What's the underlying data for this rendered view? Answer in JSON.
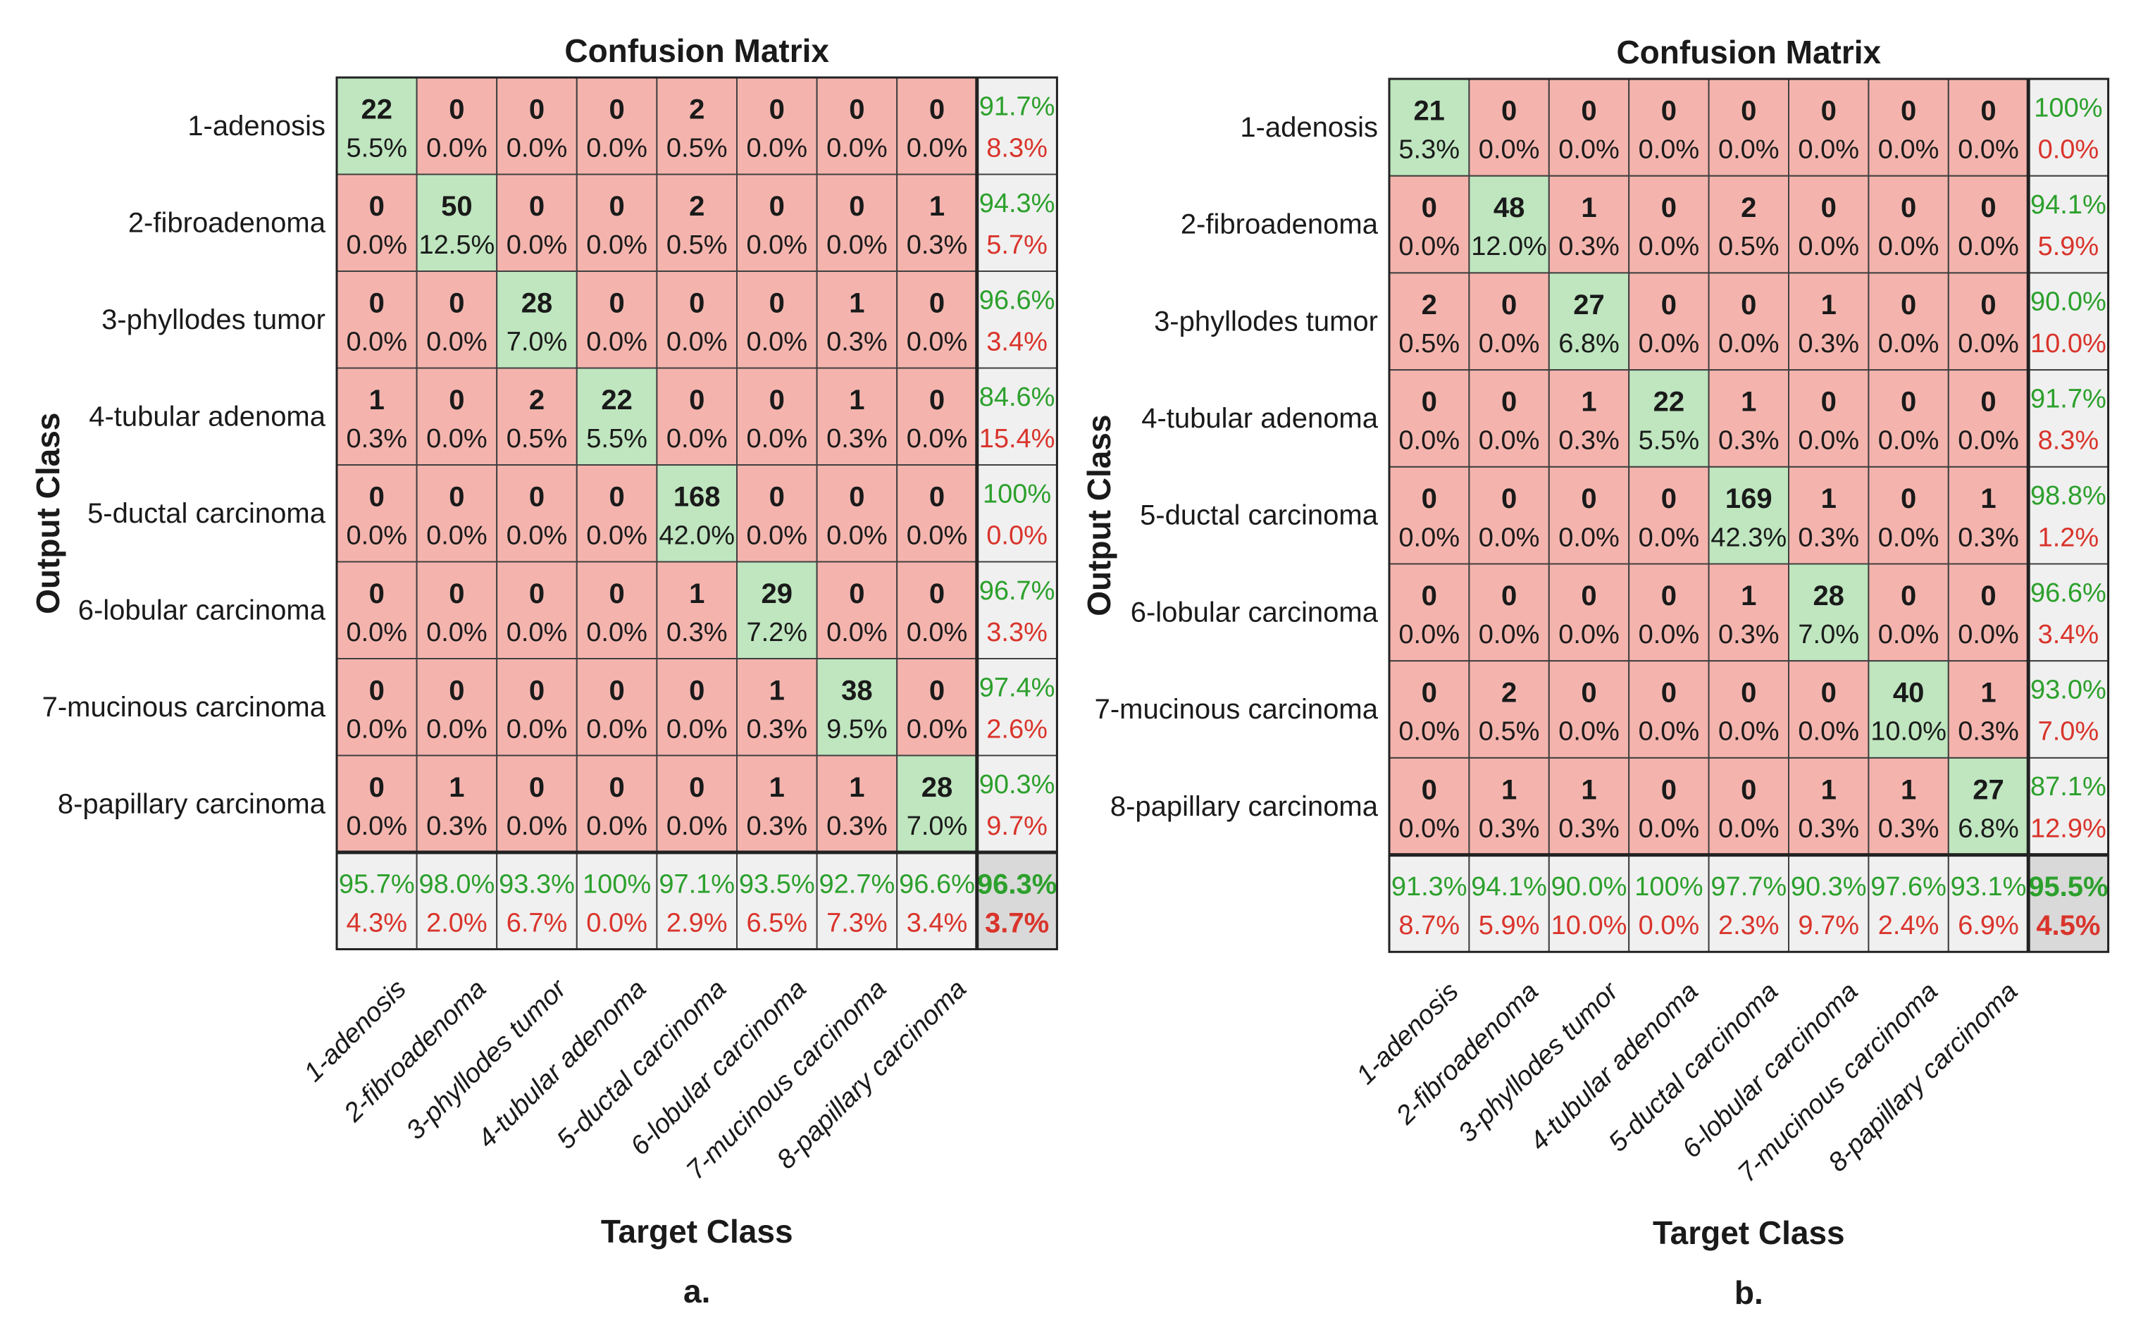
{
  "colors": {
    "diag_fill": "#bfe6bf",
    "offdiag_fill": "#f4b4ad",
    "summary_fill": "#f0f0f0",
    "total_fill": "#d9d9d9",
    "grid": "#404040",
    "green_text": "#2ca02c",
    "red_text": "#d9342b",
    "text": "#1a1a1a"
  },
  "chart_data": [
    {
      "type": "heatmap",
      "panel_label": "a.",
      "title": "Confusion Matrix",
      "xlabel": "Target Class",
      "ylabel": "Output Class",
      "classes": [
        "1-adenosis",
        "2-fibroadenoma",
        "3-phyllodes tumor",
        "4-tubular adenoma",
        "5-ductal carcinoma",
        "6-lobular carcinoma",
        "7-mucinous carcinoma",
        "8-papillary carcinoma"
      ],
      "counts": [
        [
          22,
          0,
          0,
          0,
          2,
          0,
          0,
          0
        ],
        [
          0,
          50,
          0,
          0,
          2,
          0,
          0,
          1
        ],
        [
          0,
          0,
          28,
          0,
          0,
          0,
          1,
          0
        ],
        [
          1,
          0,
          2,
          22,
          0,
          0,
          1,
          0
        ],
        [
          0,
          0,
          0,
          0,
          168,
          0,
          0,
          0
        ],
        [
          0,
          0,
          0,
          0,
          1,
          29,
          0,
          0
        ],
        [
          0,
          0,
          0,
          0,
          0,
          1,
          38,
          0
        ],
        [
          0,
          1,
          0,
          0,
          0,
          1,
          1,
          28
        ]
      ],
      "percents": [
        [
          "5.5%",
          "0.0%",
          "0.0%",
          "0.0%",
          "0.5%",
          "0.0%",
          "0.0%",
          "0.0%"
        ],
        [
          "0.0%",
          "12.5%",
          "0.0%",
          "0.0%",
          "0.5%",
          "0.0%",
          "0.0%",
          "0.3%"
        ],
        [
          "0.0%",
          "0.0%",
          "7.0%",
          "0.0%",
          "0.0%",
          "0.0%",
          "0.3%",
          "0.0%"
        ],
        [
          "0.3%",
          "0.0%",
          "0.5%",
          "5.5%",
          "0.0%",
          "0.0%",
          "0.3%",
          "0.0%"
        ],
        [
          "0.0%",
          "0.0%",
          "0.0%",
          "0.0%",
          "42.0%",
          "0.0%",
          "0.0%",
          "0.0%"
        ],
        [
          "0.0%",
          "0.0%",
          "0.0%",
          "0.0%",
          "0.3%",
          "7.2%",
          "0.0%",
          "0.0%"
        ],
        [
          "0.0%",
          "0.0%",
          "0.0%",
          "0.0%",
          "0.0%",
          "0.3%",
          "9.5%",
          "0.0%"
        ],
        [
          "0.0%",
          "0.3%",
          "0.0%",
          "0.0%",
          "0.0%",
          "0.3%",
          "0.3%",
          "7.0%"
        ]
      ],
      "row_summary": [
        [
          "91.7%",
          "8.3%"
        ],
        [
          "94.3%",
          "5.7%"
        ],
        [
          "96.6%",
          "3.4%"
        ],
        [
          "84.6%",
          "15.4%"
        ],
        [
          "100%",
          "0.0%"
        ],
        [
          "96.7%",
          "3.3%"
        ],
        [
          "97.4%",
          "2.6%"
        ],
        [
          "90.3%",
          "9.7%"
        ]
      ],
      "col_summary": [
        [
          "95.7%",
          "4.3%"
        ],
        [
          "98.0%",
          "2.0%"
        ],
        [
          "93.3%",
          "6.7%"
        ],
        [
          "100%",
          "0.0%"
        ],
        [
          "97.1%",
          "2.9%"
        ],
        [
          "93.5%",
          "6.5%"
        ],
        [
          "92.7%",
          "7.3%"
        ],
        [
          "96.6%",
          "3.4%"
        ]
      ],
      "total": [
        "96.3%",
        "3.7%"
      ]
    },
    {
      "type": "heatmap",
      "panel_label": "b.",
      "title": "Confusion Matrix",
      "xlabel": "Target Class",
      "ylabel": "Output Class",
      "classes": [
        "1-adenosis",
        "2-fibroadenoma",
        "3-phyllodes tumor",
        "4-tubular adenoma",
        "5-ductal carcinoma",
        "6-lobular carcinoma",
        "7-mucinous carcinoma",
        "8-papillary carcinoma"
      ],
      "counts": [
        [
          21,
          0,
          0,
          0,
          0,
          0,
          0,
          0
        ],
        [
          0,
          48,
          1,
          0,
          2,
          0,
          0,
          0
        ],
        [
          2,
          0,
          27,
          0,
          0,
          1,
          0,
          0
        ],
        [
          0,
          0,
          1,
          22,
          1,
          0,
          0,
          0
        ],
        [
          0,
          0,
          0,
          0,
          169,
          1,
          0,
          1
        ],
        [
          0,
          0,
          0,
          0,
          1,
          28,
          0,
          0
        ],
        [
          0,
          2,
          0,
          0,
          0,
          0,
          40,
          1
        ],
        [
          0,
          1,
          1,
          0,
          0,
          1,
          1,
          27
        ]
      ],
      "percents": [
        [
          "5.3%",
          "0.0%",
          "0.0%",
          "0.0%",
          "0.0%",
          "0.0%",
          "0.0%",
          "0.0%"
        ],
        [
          "0.0%",
          "12.0%",
          "0.3%",
          "0.0%",
          "0.5%",
          "0.0%",
          "0.0%",
          "0.0%"
        ],
        [
          "0.5%",
          "0.0%",
          "6.8%",
          "0.0%",
          "0.0%",
          "0.3%",
          "0.0%",
          "0.0%"
        ],
        [
          "0.0%",
          "0.0%",
          "0.3%",
          "5.5%",
          "0.3%",
          "0.0%",
          "0.0%",
          "0.0%"
        ],
        [
          "0.0%",
          "0.0%",
          "0.0%",
          "0.0%",
          "42.3%",
          "0.3%",
          "0.0%",
          "0.3%"
        ],
        [
          "0.0%",
          "0.0%",
          "0.0%",
          "0.0%",
          "0.3%",
          "7.0%",
          "0.0%",
          "0.0%"
        ],
        [
          "0.0%",
          "0.5%",
          "0.0%",
          "0.0%",
          "0.0%",
          "0.0%",
          "10.0%",
          "0.3%"
        ],
        [
          "0.0%",
          "0.3%",
          "0.3%",
          "0.0%",
          "0.0%",
          "0.3%",
          "0.3%",
          "6.8%"
        ]
      ],
      "row_summary": [
        [
          "100%",
          "0.0%"
        ],
        [
          "94.1%",
          "5.9%"
        ],
        [
          "90.0%",
          "10.0%"
        ],
        [
          "91.7%",
          "8.3%"
        ],
        [
          "98.8%",
          "1.2%"
        ],
        [
          "96.6%",
          "3.4%"
        ],
        [
          "93.0%",
          "7.0%"
        ],
        [
          "87.1%",
          "12.9%"
        ]
      ],
      "col_summary": [
        [
          "91.3%",
          "8.7%"
        ],
        [
          "94.1%",
          "5.9%"
        ],
        [
          "90.0%",
          "10.0%"
        ],
        [
          "100%",
          "0.0%"
        ],
        [
          "97.7%",
          "2.3%"
        ],
        [
          "90.3%",
          "9.7%"
        ],
        [
          "97.6%",
          "2.4%"
        ],
        [
          "93.1%",
          "6.9%"
        ]
      ],
      "total": [
        "95.5%",
        "4.5%"
      ]
    }
  ]
}
